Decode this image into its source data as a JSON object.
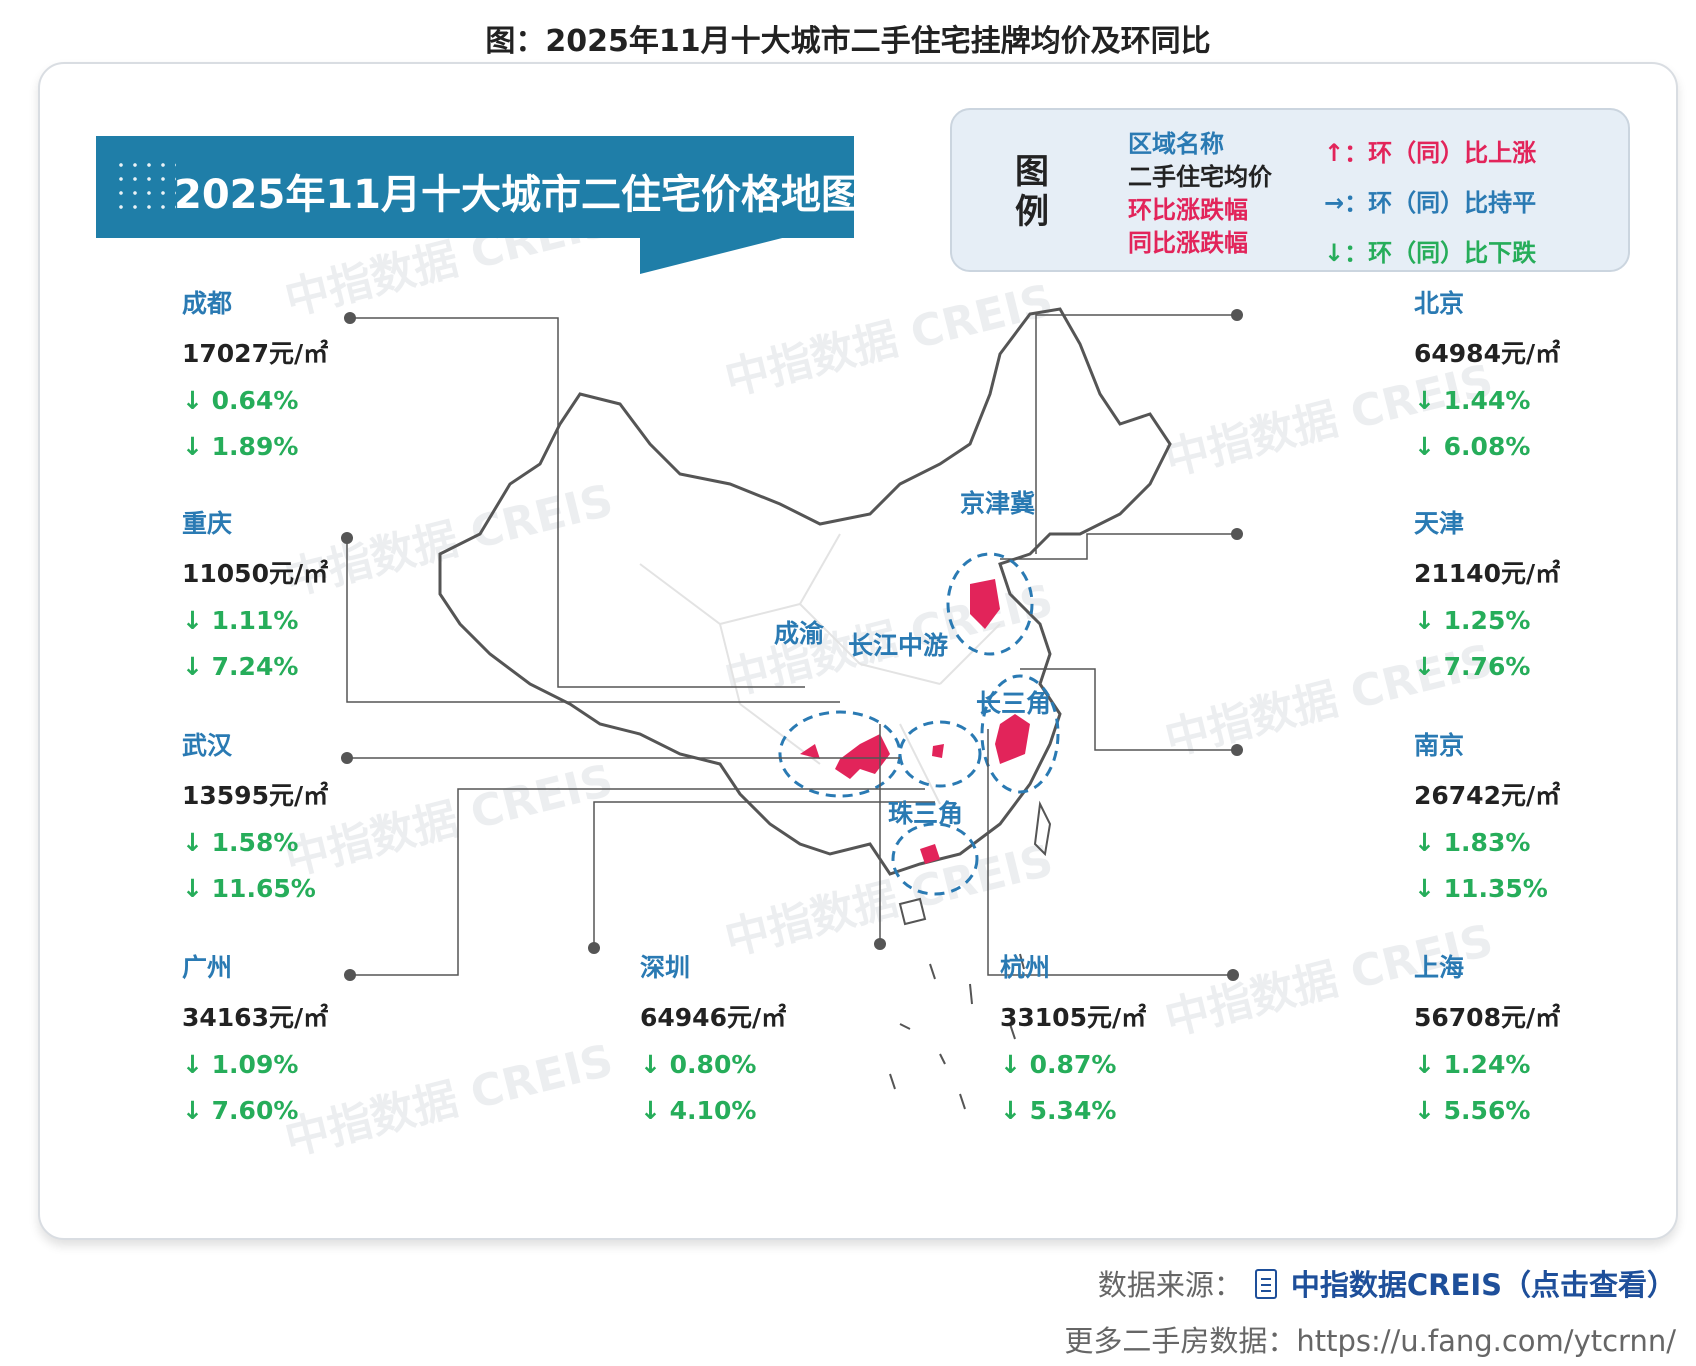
{
  "page_title": "图：2025年11月十大城市二手住宅挂牌均价及环同比",
  "banner_title": "2025年11月十大城市二住宅价格地图",
  "legend": {
    "title": "图例",
    "items_left": [
      "区域名称",
      "二手住宅均价",
      "环比涨跌幅",
      "同比涨跌幅"
    ],
    "items_right": [
      "↑：环（同）比上涨",
      "→：环（同）比持平",
      "↓：环（同）比下跌"
    ]
  },
  "colors": {
    "blue": "#2a7ab3",
    "red": "#e2245a",
    "green": "#26ad5a",
    "banner": "#1f7ea8"
  },
  "cities": [
    {
      "id": "chengdu",
      "name": "成都",
      "price": "17027元/㎡",
      "mom": "↓ 0.64%",
      "yoy": "↓ 1.89%"
    },
    {
      "id": "chongqing",
      "name": "重庆",
      "price": "11050元/㎡",
      "mom": "↓ 1.11%",
      "yoy": "↓ 7.24%"
    },
    {
      "id": "wuhan",
      "name": "武汉",
      "price": "13595元/㎡",
      "mom": "↓ 1.58%",
      "yoy": "↓ 11.65%"
    },
    {
      "id": "guangzhou",
      "name": "广州",
      "price": "34163元/㎡",
      "mom": "↓ 1.09%",
      "yoy": "↓ 7.60%"
    },
    {
      "id": "shenzhen",
      "name": "深圳",
      "price": "64946元/㎡",
      "mom": "↓ 0.80%",
      "yoy": "↓ 4.10%"
    },
    {
      "id": "hangzhou",
      "name": "杭州",
      "price": "33105元/㎡",
      "mom": "↓ 0.87%",
      "yoy": "↓ 5.34%"
    },
    {
      "id": "beijing",
      "name": "北京",
      "price": "64984元/㎡",
      "mom": "↓ 1.44%",
      "yoy": "↓ 6.08%"
    },
    {
      "id": "tianjin",
      "name": "天津",
      "price": "21140元/㎡",
      "mom": "↓ 1.25%",
      "yoy": "↓ 7.76%"
    },
    {
      "id": "nanjing",
      "name": "南京",
      "price": "26742元/㎡",
      "mom": "↓ 1.83%",
      "yoy": "↓ 11.35%"
    },
    {
      "id": "shanghai",
      "name": "上海",
      "price": "56708元/㎡",
      "mom": "↓ 1.24%",
      "yoy": "↓ 5.56%"
    }
  ],
  "regions": {
    "jingjinji": "京津冀",
    "chengyu": "成渝",
    "changjiang": "长江中游",
    "changsanjiao": "长三角",
    "zhusanjiao": "珠三角"
  },
  "watermark": "中指数据 CREIS",
  "footer": {
    "source_label": "数据来源：",
    "source_link": "中指数据CREIS（点击查看）",
    "more_text": "更多二手房数据：https://u.fang.com/ytcrnn/"
  }
}
